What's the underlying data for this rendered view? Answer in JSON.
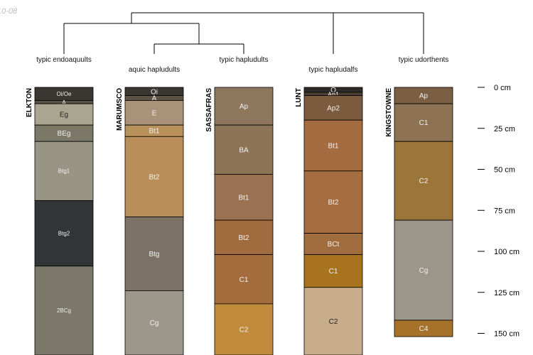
{
  "header": {
    "date_fragment": "10-08"
  },
  "chart_data": {
    "type": "soil-profile-sketch",
    "title": "",
    "depth_unit": "cm",
    "depth_range": [
      0,
      165
    ],
    "depth_ticks": [
      {
        "value": 0,
        "label": "0 cm"
      },
      {
        "value": 25,
        "label": "25 cm"
      },
      {
        "value": 50,
        "label": "50 cm"
      },
      {
        "value": 75,
        "label": "75 cm"
      },
      {
        "value": 100,
        "label": "100 cm"
      },
      {
        "value": 125,
        "label": "125 cm"
      },
      {
        "value": 150,
        "label": "150 cm"
      }
    ],
    "profiles": [
      {
        "name": "ELKTON",
        "taxon": "typic endoaquults",
        "horizons": [
          {
            "name": "Oi/Oe",
            "top": 0,
            "bottom": 8,
            "color": "#3a3632"
          },
          {
            "name": "A",
            "top": 8,
            "bottom": 10,
            "color": "#5a5248"
          },
          {
            "name": "Eg",
            "top": 10,
            "bottom": 23,
            "color": "#a9a591"
          },
          {
            "name": "BEg",
            "top": 23,
            "bottom": 33,
            "color": "#7c7868"
          },
          {
            "name": "Btg1",
            "top": 33,
            "bottom": 69,
            "color": "#999585"
          },
          {
            "name": "Btg2",
            "top": 69,
            "bottom": 109,
            "color": "#333436"
          },
          {
            "name": "2BCg",
            "top": 109,
            "bottom": 165,
            "color": "#7b7869"
          }
        ]
      },
      {
        "name": "MARUMSCO",
        "taxon": "aquic hapludults",
        "horizons": [
          {
            "name": "Oi",
            "top": 0,
            "bottom": 5,
            "color": "#3a3632"
          },
          {
            "name": "A",
            "top": 5,
            "bottom": 8,
            "color": "#5e5244"
          },
          {
            "name": "E",
            "top": 8,
            "bottom": 23,
            "color": "#a99277"
          },
          {
            "name": "Bt1",
            "top": 23,
            "bottom": 30,
            "color": "#b8925a"
          },
          {
            "name": "Bt2",
            "top": 30,
            "bottom": 79,
            "color": "#b98e58"
          },
          {
            "name": "Btg",
            "top": 79,
            "bottom": 124,
            "color": "#7c7266"
          },
          {
            "name": "Cg",
            "top": 124,
            "bottom": 165,
            "color": "#9d968a"
          }
        ]
      },
      {
        "name": "SASSAFRAS",
        "taxon": "typic hapludults",
        "horizons": [
          {
            "name": "Ap",
            "top": 0,
            "bottom": 23,
            "color": "#8e775d"
          },
          {
            "name": "BA",
            "top": 23,
            "bottom": 53,
            "color": "#8e7456"
          },
          {
            "name": "Bt1",
            "top": 53,
            "bottom": 81,
            "color": "#9a7252"
          },
          {
            "name": "Bt2",
            "top": 81,
            "bottom": 102,
            "color": "#a06b3e"
          },
          {
            "name": "C1",
            "top": 102,
            "bottom": 132,
            "color": "#a46d3d"
          },
          {
            "name": "C2",
            "top": 132,
            "bottom": 165,
            "color": "#c08b3d"
          }
        ]
      },
      {
        "name": "LUNT",
        "taxon": "typic hapludalfs",
        "horizons": [
          {
            "name": "O",
            "top": 0,
            "bottom": 3,
            "color": "#2e2b29"
          },
          {
            "name": "Ap1",
            "top": 3,
            "bottom": 5,
            "color": "#4c3e33"
          },
          {
            "name": "Ap2",
            "top": 5,
            "bottom": 20,
            "color": "#7b5a3e"
          },
          {
            "name": "Bt1",
            "top": 20,
            "bottom": 51,
            "color": "#a46c40"
          },
          {
            "name": "Bt2",
            "top": 51,
            "bottom": 89,
            "color": "#a66d41"
          },
          {
            "name": "BCt",
            "top": 89,
            "bottom": 102,
            "color": "#a16d3e"
          },
          {
            "name": "C1",
            "top": 102,
            "bottom": 122,
            "color": "#a8731f"
          },
          {
            "name": "C2",
            "top": 122,
            "bottom": 165,
            "color": "#c7ad8a"
          }
        ]
      },
      {
        "name": "KINGSTOWNE",
        "taxon": "typic udorthents",
        "horizons": [
          {
            "name": "Ap",
            "top": 0,
            "bottom": 10,
            "color": "#7a5f44"
          },
          {
            "name": "C1",
            "top": 10,
            "bottom": 33,
            "color": "#8d7353"
          },
          {
            "name": "C2",
            "top": 33,
            "bottom": 81,
            "color": "#9b7539"
          },
          {
            "name": "Cg",
            "top": 81,
            "bottom": 142,
            "color": "#9c968a"
          },
          {
            "name": "C4",
            "top": 142,
            "bottom": 152,
            "color": "#a6722a"
          }
        ]
      }
    ],
    "dendrogram": {
      "merges": [
        {
          "left": "MARUMSCO",
          "right": "SASSAFRAS",
          "height": 1
        },
        {
          "left": "ELKTON",
          "right": "MARUMSCO+SASSAFRAS",
          "height": 2
        },
        {
          "left": "ELKTON+MARUMSCO+SASSAFRAS",
          "right": "LUNT+KINGSTOWNE",
          "height": 3
        },
        {
          "left": "LUNT",
          "right": "KINGSTOWNE",
          "height": 3
        }
      ]
    }
  }
}
